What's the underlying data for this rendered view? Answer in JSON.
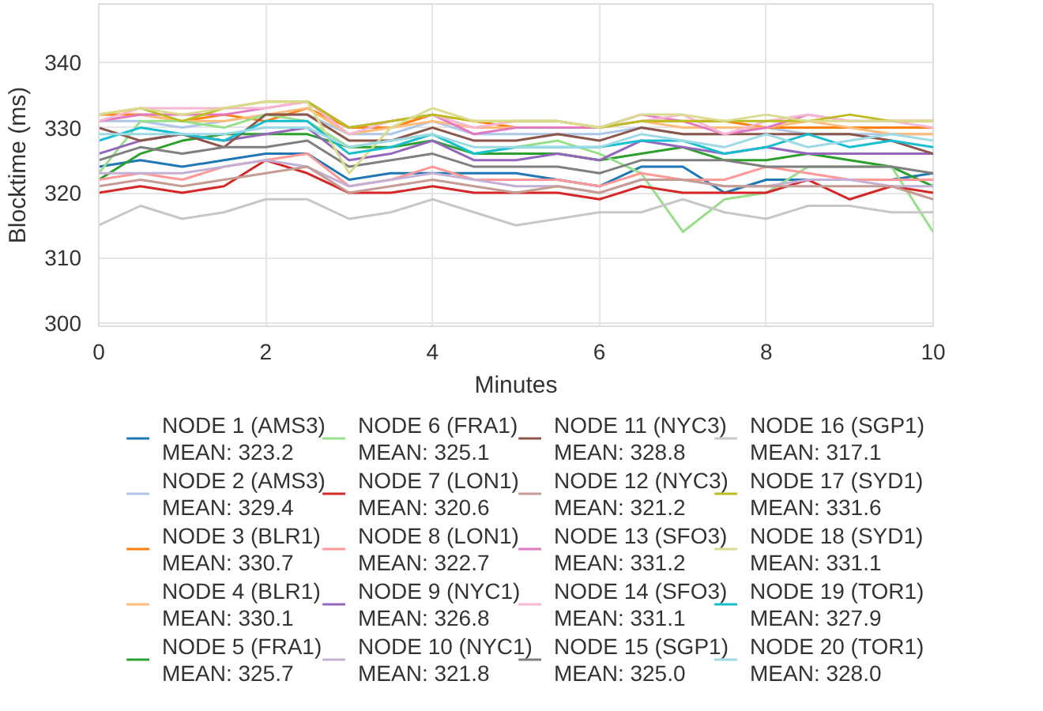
{
  "chart_data": {
    "type": "line",
    "xlabel": "Minutes",
    "ylabel": "Blocktime (ms)",
    "x": [
      0,
      0.5,
      1,
      1.5,
      2,
      2.5,
      3,
      3.5,
      4,
      4.5,
      5,
      5.5,
      6,
      6.5,
      7,
      7.5,
      8,
      8.5,
      9,
      9.5,
      10
    ],
    "xlim": [
      0,
      10
    ],
    "xticks": [
      0,
      2,
      4,
      6,
      8,
      10
    ],
    "ylim": [
      299.5,
      349
    ],
    "yticks": [
      300,
      310,
      320,
      330,
      340
    ],
    "grid": true,
    "legend": "bottom",
    "marker": "none",
    "line_style": "solid",
    "series": [
      {
        "name": "NODE 1 (AMS3)\nMEAN: 323.2",
        "color": "#1f77b4",
        "values": [
          324,
          325,
          324,
          325,
          326,
          326,
          322,
          323,
          323,
          323,
          323,
          322,
          321,
          324,
          324,
          320,
          322,
          322,
          322,
          322,
          323
        ]
      },
      {
        "name": "NODE 2 (AMS3)\nMEAN: 329.4",
        "color": "#aec7e8",
        "values": [
          331,
          331,
          330,
          331,
          332,
          332,
          329,
          329,
          331,
          329,
          329,
          329,
          329,
          330,
          329,
          329,
          330,
          329,
          329,
          329,
          329
        ]
      },
      {
        "name": "NODE 3 (BLR1)\nMEAN: 330.7",
        "color": "#ff7f0e",
        "values": [
          332,
          332,
          331,
          332,
          331,
          333,
          330,
          330,
          332,
          331,
          330,
          330,
          330,
          331,
          331,
          331,
          330,
          330,
          330,
          330,
          330
        ]
      },
      {
        "name": "NODE 4 (BLR1)\nMEAN: 330.1",
        "color": "#ffbb78",
        "values": [
          331,
          332,
          331,
          331,
          332,
          333,
          329,
          330,
          331,
          330,
          330,
          330,
          330,
          331,
          330,
          330,
          330,
          331,
          330,
          329,
          329
        ]
      },
      {
        "name": "NODE 5 (FRA1)\nMEAN: 325.7",
        "color": "#2ca02c",
        "values": [
          322,
          326,
          328,
          329,
          329,
          329,
          327,
          327,
          328,
          326,
          326,
          326,
          325,
          326,
          327,
          325,
          325,
          326,
          325,
          324,
          321
        ]
      },
      {
        "name": "NODE 6 (FRA1)\nMEAN: 325.1",
        "color": "#98df8a",
        "values": [
          323,
          331,
          331,
          330,
          332,
          331,
          327,
          328,
          329,
          326,
          327,
          328,
          326,
          323,
          314,
          319,
          320,
          324,
          324,
          324,
          314
        ]
      },
      {
        "name": "NODE 7 (LON1)\nMEAN: 320.6",
        "color": "#d62728",
        "values": [
          320,
          321,
          320,
          321,
          325,
          323,
          320,
          320,
          321,
          320,
          320,
          320,
          319,
          321,
          320,
          320,
          320,
          322,
          319,
          321,
          320
        ]
      },
      {
        "name": "NODE 8 (LON1)\nMEAN: 322.7",
        "color": "#ff9896",
        "values": [
          322,
          323,
          322,
          324,
          325,
          326,
          321,
          322,
          324,
          322,
          322,
          322,
          321,
          323,
          322,
          322,
          324,
          323,
          322,
          322,
          322
        ]
      },
      {
        "name": "NODE 9 (NYC1)\nMEAN: 326.8",
        "color": "#9467bd",
        "values": [
          326,
          328,
          329,
          328,
          329,
          330,
          325,
          326,
          328,
          325,
          325,
          326,
          325,
          328,
          327,
          326,
          327,
          326,
          326,
          326,
          326
        ]
      },
      {
        "name": "NODE 10 (NYC1)\nMEAN: 321.8",
        "color": "#c5b0d5",
        "values": [
          323,
          323,
          323,
          324,
          325,
          324,
          321,
          322,
          323,
          322,
          321,
          321,
          320,
          322,
          322,
          321,
          321,
          322,
          322,
          321,
          321
        ]
      },
      {
        "name": "NODE 11 (NYC3)\nMEAN: 328.8",
        "color": "#8c564b",
        "values": [
          330,
          328,
          329,
          327,
          332,
          332,
          328,
          328,
          330,
          328,
          328,
          329,
          328,
          330,
          329,
          329,
          329,
          329,
          329,
          328,
          326
        ]
      },
      {
        "name": "NODE 12 (NYC3)\nMEAN: 321.2",
        "color": "#c49c94",
        "values": [
          321,
          322,
          321,
          322,
          323,
          324,
          320,
          321,
          322,
          321,
          320,
          321,
          320,
          322,
          322,
          321,
          321,
          321,
          321,
          321,
          319
        ]
      },
      {
        "name": "NODE 13 (SFO3)\nMEAN: 331.2",
        "color": "#e377c2",
        "values": [
          331,
          332,
          332,
          332,
          333,
          334,
          330,
          331,
          332,
          329,
          330,
          330,
          330,
          332,
          331,
          329,
          330,
          332,
          331,
          331,
          331
        ]
      },
      {
        "name": "NODE 14 (SFO3)\nMEAN: 331.1",
        "color": "#f7b6d2",
        "values": [
          331,
          333,
          333,
          333,
          333,
          334,
          329,
          331,
          332,
          330,
          331,
          331,
          330,
          331,
          332,
          329,
          331,
          332,
          331,
          331,
          330
        ]
      },
      {
        "name": "NODE 15 (SGP1)\nMEAN: 325.0",
        "color": "#7f7f7f",
        "values": [
          325,
          327,
          326,
          327,
          327,
          328,
          324,
          325,
          326,
          324,
          324,
          324,
          323,
          325,
          325,
          325,
          324,
          324,
          324,
          324,
          323
        ]
      },
      {
        "name": "NODE 16 (SGP1)\nMEAN: 317.1",
        "color": "#c7c7c7",
        "values": [
          315,
          318,
          316,
          317,
          319,
          319,
          316,
          317,
          319,
          317,
          315,
          316,
          317,
          317,
          319,
          317,
          316,
          318,
          318,
          317,
          317
        ]
      },
      {
        "name": "NODE 17 (SYD1)\nMEAN: 331.6",
        "color": "#bcbd22",
        "values": [
          332,
          333,
          331,
          333,
          334,
          334,
          330,
          331,
          332,
          331,
          331,
          331,
          330,
          331,
          331,
          331,
          331,
          331,
          332,
          331,
          331
        ]
      },
      {
        "name": "NODE 18 (SYD1)\nMEAN: 331.1",
        "color": "#dbdb8d",
        "values": [
          332,
          333,
          332,
          333,
          334,
          334,
          323,
          330,
          333,
          331,
          331,
          331,
          330,
          332,
          332,
          331,
          332,
          331,
          331,
          331,
          331
        ]
      },
      {
        "name": "NODE 19 (TOR1)\nMEAN: 327.9",
        "color": "#17becf",
        "values": [
          328,
          330,
          329,
          328,
          331,
          331,
          326,
          327,
          329,
          326,
          327,
          327,
          327,
          328,
          328,
          326,
          327,
          329,
          327,
          328,
          327
        ]
      },
      {
        "name": "NODE 20 (TOR1)\nMEAN: 328.0",
        "color": "#9edae5",
        "values": [
          329,
          329,
          329,
          329,
          330,
          330,
          327,
          328,
          329,
          327,
          327,
          327,
          327,
          329,
          328,
          327,
          329,
          327,
          328,
          329,
          328
        ]
      }
    ]
  }
}
